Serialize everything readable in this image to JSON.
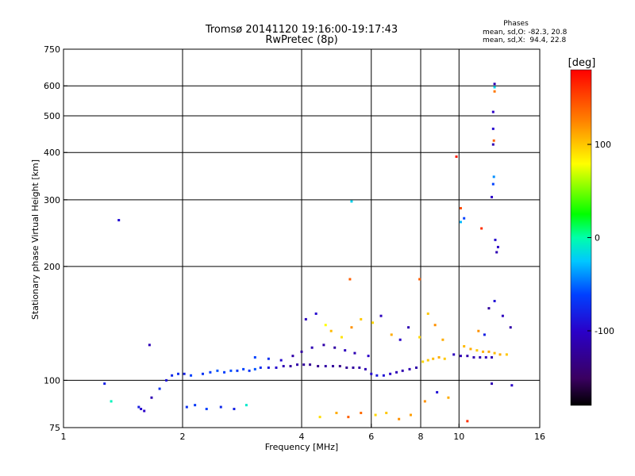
{
  "chart_data": {
    "type": "scatter",
    "title": "Tromsø 20141120 19:16:00-19:17:43",
    "subtitle": "RwPretec (8p)",
    "xlabel": "Frequency [MHz]",
    "ylabel": "Stationary phase Virtual Height [km]",
    "x_scale": "log",
    "y_scale": "log",
    "xlim": [
      1,
      16
    ],
    "ylim": [
      75,
      750
    ],
    "x_ticks": [
      "1",
      "2",
      "4",
      "6",
      "8",
      "10",
      "16"
    ],
    "x_tick_values": [
      1,
      2,
      4,
      6,
      8,
      10,
      16
    ],
    "y_ticks": [
      "750",
      "600",
      "500",
      "400",
      "300",
      "200",
      "100",
      "75"
    ],
    "y_tick_values": [
      750,
      600,
      500,
      400,
      300,
      200,
      100,
      75
    ],
    "x_grid": [
      2,
      4,
      6,
      8,
      10
    ],
    "y_grid": [
      100,
      200,
      300,
      400,
      500,
      600
    ],
    "stats": {
      "heading": "Phases",
      "line1": "mean, sd,O: -82.3, 20.8",
      "line2": "mean, sd,X:  94.4, 22.8"
    },
    "colorbar": {
      "label": "[deg]",
      "range": [
        -180,
        180
      ],
      "ticks": [
        "100",
        "0",
        "-100"
      ],
      "tick_values": [
        100,
        0,
        -100
      ]
    },
    "series": [
      {
        "values": [
          [
            1.38,
            265,
            -92
          ],
          [
            1.27,
            98,
            -80
          ],
          [
            1.32,
            88,
            -5
          ],
          [
            1.65,
            124,
            -108
          ],
          [
            1.55,
            85,
            -82
          ],
          [
            1.57,
            84,
            -95
          ],
          [
            1.6,
            83,
            -100
          ],
          [
            1.67,
            90,
            -110
          ],
          [
            1.75,
            95,
            -70
          ],
          [
            1.82,
            100,
            -88
          ],
          [
            1.88,
            103,
            -75
          ],
          [
            1.95,
            104,
            -72
          ],
          [
            2.02,
            104,
            -80
          ],
          [
            2.1,
            103,
            -60
          ],
          [
            2.25,
            104,
            -68
          ],
          [
            2.35,
            105,
            -62
          ],
          [
            2.45,
            106,
            -55
          ],
          [
            2.55,
            105,
            -62
          ],
          [
            2.65,
            106,
            -57
          ],
          [
            2.75,
            106,
            -65
          ],
          [
            2.85,
            107,
            -60
          ],
          [
            2.95,
            106,
            -68
          ],
          [
            3.05,
            107,
            -55
          ],
          [
            3.15,
            108,
            -72
          ],
          [
            3.3,
            108,
            -85
          ],
          [
            3.45,
            108,
            -95
          ],
          [
            3.6,
            109,
            -110
          ],
          [
            3.75,
            109,
            -120
          ],
          [
            3.9,
            110,
            -115
          ],
          [
            4.05,
            110,
            -120
          ],
          [
            4.2,
            110,
            -125
          ],
          [
            4.4,
            109,
            -128
          ],
          [
            4.6,
            109,
            -118
          ],
          [
            4.8,
            109,
            -122
          ],
          [
            5.0,
            109,
            -130
          ],
          [
            5.2,
            108,
            -125
          ],
          [
            5.4,
            108,
            -120
          ],
          [
            5.6,
            108,
            -118
          ],
          [
            5.8,
            107,
            -110
          ],
          [
            6.0,
            104,
            -95
          ],
          [
            6.2,
            103,
            -85
          ],
          [
            6.45,
            103,
            -90
          ],
          [
            6.7,
            104,
            -100
          ],
          [
            6.95,
            105,
            -108
          ],
          [
            7.2,
            106,
            -112
          ],
          [
            7.5,
            107,
            -110
          ],
          [
            7.8,
            108,
            -115
          ],
          [
            3.05,
            115,
            -60
          ],
          [
            3.3,
            114,
            -70
          ],
          [
            3.55,
            113,
            -95
          ],
          [
            3.8,
            116,
            -115
          ],
          [
            4.0,
            119,
            -120
          ],
          [
            4.25,
            122,
            -110
          ],
          [
            4.55,
            124,
            -115
          ],
          [
            4.85,
            122,
            -118
          ],
          [
            5.15,
            120,
            -105
          ],
          [
            5.45,
            118,
            -110
          ],
          [
            5.9,
            116,
            -100
          ],
          [
            2.05,
            85,
            -70
          ],
          [
            2.15,
            86,
            -65
          ],
          [
            2.3,
            84,
            -60
          ],
          [
            2.5,
            85,
            -75
          ],
          [
            2.7,
            84,
            -80
          ],
          [
            2.9,
            86,
            -10
          ],
          [
            4.1,
            145,
            -105
          ],
          [
            4.35,
            150,
            -95
          ],
          [
            4.6,
            140,
            80
          ],
          [
            4.75,
            135,
            105
          ],
          [
            5.05,
            130,
            90
          ],
          [
            5.35,
            138,
            120
          ],
          [
            5.65,
            145,
            100
          ],
          [
            6.05,
            142,
            95
          ],
          [
            6.35,
            148,
            -105
          ],
          [
            6.75,
            132,
            110
          ],
          [
            7.1,
            128,
            -100
          ],
          [
            7.45,
            138,
            -110
          ],
          [
            7.95,
            130,
            95
          ],
          [
            8.35,
            150,
            100
          ],
          [
            8.7,
            140,
            120
          ],
          [
            9.1,
            128,
            110
          ],
          [
            4.45,
            80,
            92
          ],
          [
            4.9,
            82,
            110
          ],
          [
            5.25,
            80,
            140
          ],
          [
            5.65,
            82,
            135
          ],
          [
            6.15,
            81,
            95
          ],
          [
            6.55,
            82,
            100
          ],
          [
            7.05,
            79,
            120
          ],
          [
            7.55,
            81,
            115
          ],
          [
            5.3,
            185,
            140
          ],
          [
            5.35,
            297,
            -20
          ],
          [
            7.95,
            185,
            140
          ],
          [
            8.1,
            112,
            95
          ],
          [
            8.35,
            113,
            100
          ],
          [
            8.6,
            114,
            105
          ],
          [
            8.9,
            115,
            110
          ],
          [
            9.2,
            114,
            100
          ],
          [
            9.7,
            117,
            -105
          ],
          [
            10.1,
            116,
            -110
          ],
          [
            10.5,
            116,
            -115
          ],
          [
            10.9,
            115,
            -112
          ],
          [
            11.3,
            115,
            -110
          ],
          [
            11.7,
            115,
            -108
          ],
          [
            12.1,
            115,
            -110
          ],
          [
            10.3,
            123,
            105
          ],
          [
            10.7,
            121,
            110
          ],
          [
            11.1,
            120,
            100
          ],
          [
            11.5,
            119,
            108
          ],
          [
            11.9,
            119,
            112
          ],
          [
            12.3,
            118,
            105
          ],
          [
            12.7,
            117,
            110
          ],
          [
            13.2,
            117,
            100
          ],
          [
            12.3,
            607,
            -110
          ],
          [
            12.3,
            595,
            -20
          ],
          [
            12.3,
            580,
            130
          ],
          [
            12.2,
            512,
            -100
          ],
          [
            12.2,
            462,
            -95
          ],
          [
            12.25,
            430,
            140
          ],
          [
            12.2,
            420,
            -110
          ],
          [
            12.25,
            345,
            -40
          ],
          [
            12.2,
            330,
            -60
          ],
          [
            12.1,
            305,
            -100
          ],
          [
            9.85,
            390,
            170
          ],
          [
            10.1,
            285,
            150
          ],
          [
            10.3,
            268,
            -60
          ],
          [
            10.1,
            262,
            -30
          ],
          [
            11.4,
            252,
            160
          ],
          [
            12.35,
            235,
            -95
          ],
          [
            12.55,
            225,
            -100
          ],
          [
            12.45,
            218,
            -110
          ],
          [
            11.9,
            155,
            -120
          ],
          [
            12.3,
            162,
            -90
          ],
          [
            12.9,
            148,
            -105
          ],
          [
            13.5,
            138,
            -115
          ],
          [
            11.2,
            135,
            120
          ],
          [
            11.6,
            132,
            -80
          ],
          [
            12.1,
            98,
            -110
          ],
          [
            13.6,
            97,
            -100
          ],
          [
            10.5,
            78,
            160
          ],
          [
            9.4,
            90,
            110
          ],
          [
            8.2,
            88,
            120
          ],
          [
            8.8,
            93,
            -90
          ]
        ]
      }
    ]
  }
}
